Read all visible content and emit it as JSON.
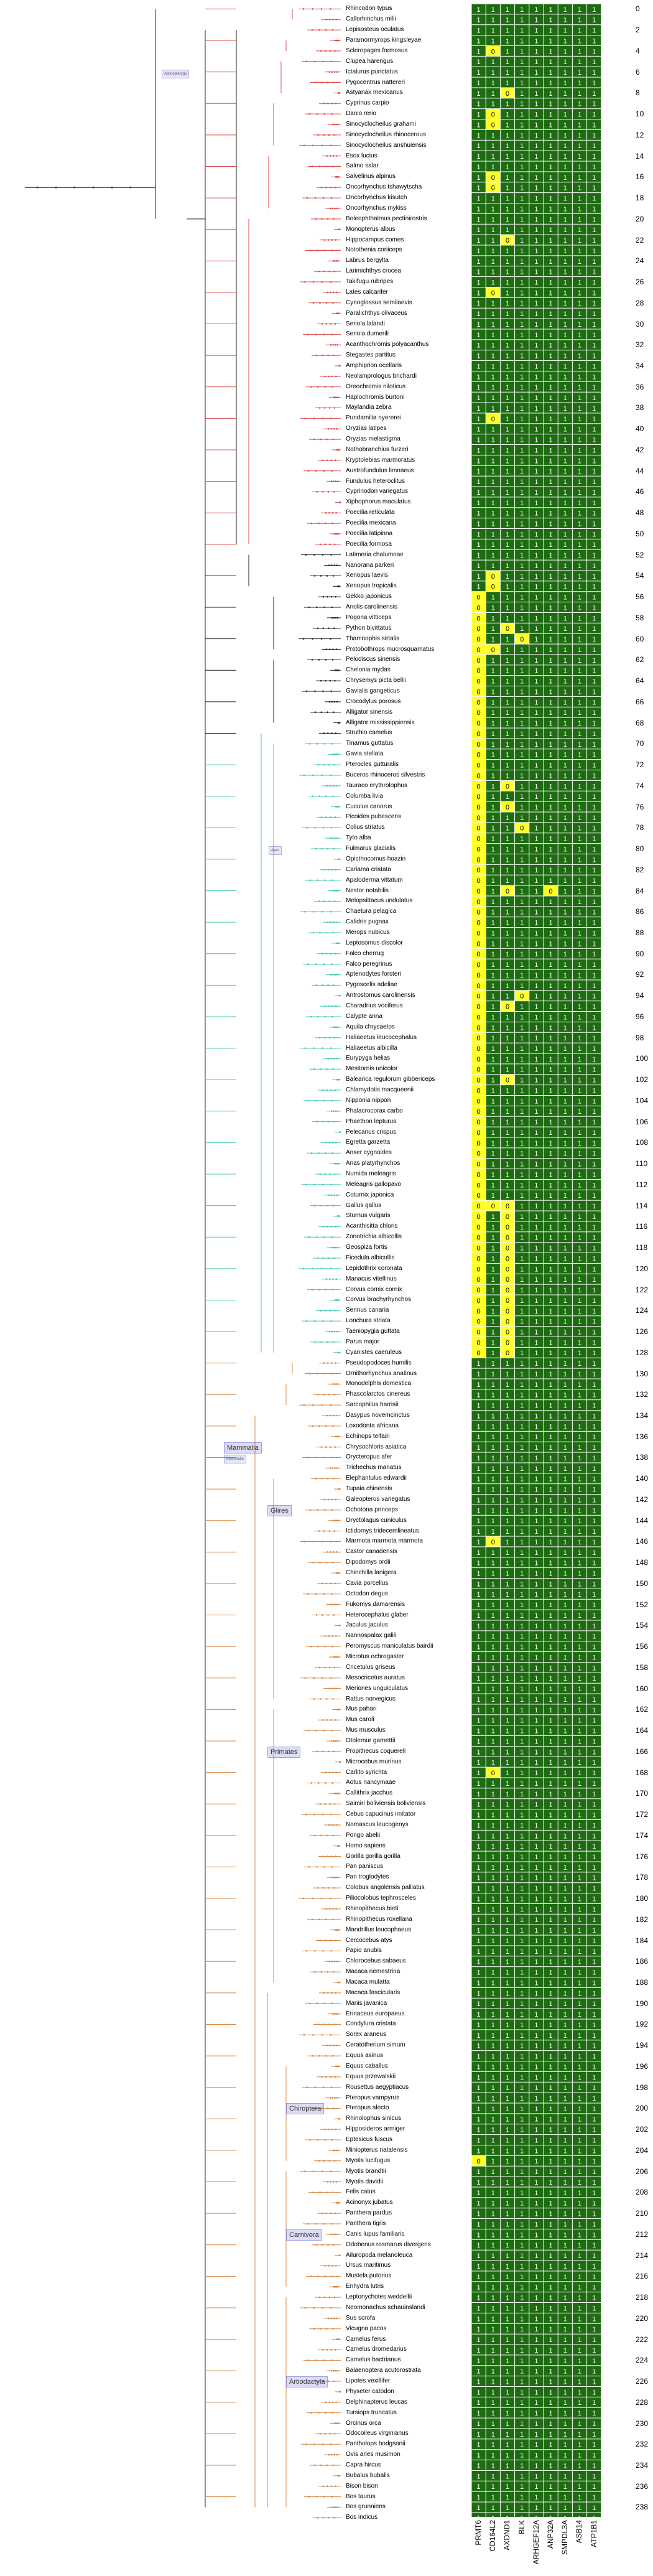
{
  "species": [
    "Rhincodon typus",
    "Callorhinchus milii",
    "Lepisosteus oculatus",
    "Paramormyrops kingsleyae",
    "Scleropages formosus",
    "Clupea harengus",
    "Ictalurus punctatus",
    "Pygocentrus nattereri",
    "Astyanax mexicanus",
    "Cyprinus carpio",
    "Danio rerio",
    "Sinocyclocheilus grahami",
    "Sinocyclocheilus rhinocerous",
    "Sinocyclocheilus anshuiensis",
    "Esox lucius",
    "Salmo salar",
    "Salvelinus alpinus",
    "Oncorhynchus tshawytscha",
    "Oncorhynchus kisutch",
    "Oncorhynchus mykiss",
    "Boleophthalmus pectinirostris",
    "Monopterus albus",
    "Hippocampus comes",
    "Notothenia coriiceps",
    "Labrus bergylta",
    "Larimichthys crocea",
    "Takifugu rubripes",
    "Lates calcarifer",
    "Cynoglossus semilaevis",
    "Paralichthys olivaceus",
    "Seriola lalandi",
    "Seriola dumerili",
    "Acanthochromis polyacanthus",
    "Stegastes partitus",
    "Amphiprion ocellaris",
    "Neolamprologus brichardi",
    "Oreochromis niloticus",
    "Haplochromis burtoni",
    "Maylandia zebra",
    "Pundamilia nyererei",
    "Oryzias latipes",
    "Oryzias melastigma",
    "Nothobranchius furzeri",
    "Kryptolebias marmoratus",
    "Austrofundulus limnaeus",
    "Fundulus heteroclitus",
    "Cyprinodon variegatus",
    "Xiphophorus maculatus",
    "Poecilia reticulata",
    "Poecilia mexicana",
    "Poecilia latipinna",
    "Poecilia formosa",
    "Latimeria chalumnae",
    "Nanorana parkeri",
    "Xenopus laevis",
    "Xenopus tropicalis",
    "Gekko japonicus",
    "Anolis carolinensis",
    "Pogona vitticeps",
    "Python bivittatus",
    "Thamnophis sirtalis",
    "Protobothrops mucrosquamatus",
    "Pelodiscus sinensis",
    "Chelonia mydas",
    "Chrysemys picta bellii",
    "Gavialis gangeticus",
    "Crocodylus porosus",
    "Alligator sinensis",
    "Alligator mississippiensis",
    "Struthio camelus",
    "Tinamus guttatus",
    "Gavia stellata",
    "Pterocles gutturalis",
    "Buceros rhinoceros silvestris",
    "Tauraco erythrolophus",
    "Columba livia",
    "Cuculus canorus",
    "Picoides pubescens",
    "Colius striatus",
    "Tyto alba",
    "Fulmarus glacialis",
    "Opisthocomus hoazin",
    "Cariama cristata",
    "Apaloderma vittatum",
    "Nestor notabilis",
    "Melopsittacus undulatus",
    "Chaetura pelagica",
    "Calidris pugnax",
    "Merops nubicus",
    "Leptosomus discolor",
    "Falco cherrug",
    "Falco peregrinus",
    "Aptenodytes forsteri",
    "Pygoscelis adeliae",
    "Antrostomus carolinensis",
    "Charadrius vociferus",
    "Calypte anna",
    "Aquila chrysaetos",
    "Haliaeetus leucocephalus",
    "Haliaeetus albicilla",
    "Eurypyga helias",
    "Mesitornis unicolor",
    "Balearica regulorum gibbericeps",
    "Chlamydotis macqueenii",
    "Nipponia nippon",
    "Phalacrocorax carbo",
    "Phaethon lepturus",
    "Pelecanus crispus",
    "Egretta garzetta",
    "Anser cygnoides",
    "Anas platyrhynchos",
    "Numida meleagris",
    "Meleagris gallopavo",
    "Coturnix japonica",
    "Gallus gallus",
    "Sturnus vulgaris",
    "Acanthisitta chloris",
    "Zonotrichia albicollis",
    "Geospiza fortis",
    "Ficedula albicollis",
    "Lepidothrix coronata",
    "Manacus vitellinus",
    "Corvus cornix cornix",
    "Corvus brachyrhynchos",
    "Serinus canaria",
    "Lonchura striata",
    "Taeniopygia guttata",
    "Parus major",
    "Cyanistes caeruleus",
    "Pseudopodoces humilis",
    "Ornithorhynchus anatinus",
    "Monodelphis domestica",
    "Phascolarctos cinereus",
    "Sarcophilus harrisii",
    "Dasypus novemcinctus",
    "Loxodonta africana",
    "Echinops telfairi",
    "Chrysochloris asiatica",
    "Orycteropus afer",
    "Trichechus manatus",
    "Elephantulus edwardii",
    "Tupaia chinensis",
    "Galeopterus variegatus",
    "Ochotona princeps",
    "Oryctolagus cuniculus",
    "Ictidomys tridecemlineatus",
    "Marmota marmota marmota",
    "Castor canadensis",
    "Dipodomys ordii",
    "Chinchilla lanigera",
    "Cavia porcellus",
    "Octodon degus",
    "Fukomys damarensis",
    "Heterocephalus glaber",
    "Jaculus jaculus",
    "Nannospalax galili",
    "Peromyscus maniculatus bairdii",
    "Microtus ochrogaster",
    "Cricetulus griseus",
    "Mesocricetus auratus",
    "Meriones unguiculatus",
    "Rattus norvegicus",
    "Mus pahari",
    "Mus caroli",
    "Mus musculus",
    "Otolemur garnettii",
    "Propithecus coquereli",
    "Microcebus murinus",
    "Carlito syrichta",
    "Aotus nancymaae",
    "Callithrix jacchus",
    "Saimiri boliviensis boliviensis",
    "Cebus capucinus imitator",
    "Nomascus leucogenys",
    "Pongo abelii",
    "Homo sapiens",
    "Gorilla gorilla gorilla",
    "Pan paniscus",
    "Pan troglodytes",
    "Colobus angolensis palliatus",
    "Piliocolobus tephrosceles",
    "Rhinopithecus bieti",
    "Rhinopithecus roxellana",
    "Mandrillus leucophaeus",
    "Cercocebus atys",
    "Papio anubis",
    "Chlorocebus sabaeus",
    "Macaca nemestrina",
    "Macaca mulatta",
    "Macaca fascicularis",
    "Manis javanica",
    "Erinaceus europaeus",
    "Condylura cristata",
    "Sorex araneus",
    "Ceratotherium simum",
    "Equus asinus",
    "Equus caballus",
    "Equus przewalskii",
    "Rousettus aegyptiacus",
    "Pteropus vampyrus",
    "Pteropus alecto",
    "Rhinolophus sinicus",
    "Hipposideros armiger",
    "Eptesicus fuscus",
    "Miniopterus natalensis",
    "Myotis lucifugus",
    "Myotis brandtii",
    "Myotis davidii",
    "Felis catus",
    "Acinonyx jubatus",
    "Panthera pardus",
    "Panthera tigris",
    "Canis lupus familiaris",
    "Odobenus rosmarus divergens",
    "Ailuropoda melanoleuca",
    "Ursus maritimus",
    "Mustela putorius",
    "Enhydra lutris",
    "Leptonychotes weddellii",
    "Neomonachus schauinslandi",
    "Sus scrofa",
    "Vicugna pacos",
    "Camelus ferus",
    "Camelus dromedarius",
    "Camelus bactrianus",
    "Balaenoptera acutorostrata",
    "Lipotes vexillifer",
    "Physeter catodon",
    "Delphinapterus leucas",
    "Tursiops truncatus",
    "Orcinus orca",
    "Odocoileus virginianus",
    "Pantholops hodgsonii",
    "Ovis aries musimon",
    "Capra hircus",
    "Bubalus bubalis",
    "Bison bison",
    "Bos taurus",
    "Bos grunniens",
    "Bos indicus"
  ],
  "genes": [
    "PRMT6",
    "CD164L2",
    "AXDND1",
    "BLK",
    "ARHGEF12A",
    "ANP32A",
    "SMPDL3A",
    "ASB14",
    "ATP1B1"
  ],
  "row_indices_label_every": 2,
  "highlight_labels": [
    "0",
    "1"
  ],
  "cells_zero": [
    [
      4,
      1
    ],
    [
      8,
      2
    ],
    [
      10,
      1
    ],
    [
      11,
      1
    ],
    [
      16,
      1
    ],
    [
      17,
      1
    ],
    [
      22,
      2
    ],
    [
      27,
      1
    ],
    [
      39,
      1
    ],
    [
      54,
      1
    ],
    [
      55,
      1
    ],
    [
      56,
      0
    ],
    [
      57,
      0
    ],
    [
      58,
      0
    ],
    [
      59,
      0
    ],
    [
      59,
      2
    ],
    [
      60,
      0
    ],
    [
      60,
      3
    ],
    [
      61,
      0
    ],
    [
      61,
      1
    ],
    [
      62,
      0
    ],
    [
      63,
      0
    ],
    [
      64,
      0
    ],
    [
      65,
      0
    ],
    [
      66,
      0
    ],
    [
      67,
      0
    ],
    [
      68,
      0
    ],
    [
      69,
      0
    ],
    [
      70,
      0
    ],
    [
      71,
      0
    ],
    [
      72,
      0
    ],
    [
      73,
      0
    ],
    [
      74,
      0
    ],
    [
      74,
      2
    ],
    [
      75,
      0
    ],
    [
      76,
      0
    ],
    [
      76,
      2
    ],
    [
      77,
      0
    ],
    [
      78,
      0
    ],
    [
      78,
      3
    ],
    [
      79,
      0
    ],
    [
      80,
      0
    ],
    [
      81,
      0
    ],
    [
      82,
      0
    ],
    [
      83,
      0
    ],
    [
      84,
      0
    ],
    [
      84,
      2
    ],
    [
      84,
      5
    ],
    [
      85,
      0
    ],
    [
      86,
      0
    ],
    [
      87,
      0
    ],
    [
      88,
      0
    ],
    [
      89,
      0
    ],
    [
      90,
      0
    ],
    [
      91,
      0
    ],
    [
      92,
      0
    ],
    [
      93,
      0
    ],
    [
      94,
      0
    ],
    [
      94,
      3
    ],
    [
      95,
      0
    ],
    [
      95,
      2
    ],
    [
      96,
      0
    ],
    [
      97,
      0
    ],
    [
      98,
      0
    ],
    [
      99,
      0
    ],
    [
      100,
      0
    ],
    [
      101,
      0
    ],
    [
      102,
      0
    ],
    [
      102,
      2
    ],
    [
      103,
      0
    ],
    [
      104,
      0
    ],
    [
      105,
      0
    ],
    [
      106,
      0
    ],
    [
      107,
      0
    ],
    [
      108,
      0
    ],
    [
      109,
      0
    ],
    [
      110,
      0
    ],
    [
      111,
      0
    ],
    [
      112,
      0
    ],
    [
      113,
      0
    ],
    [
      114,
      0
    ],
    [
      114,
      1
    ],
    [
      114,
      2
    ],
    [
      115,
      0
    ],
    [
      115,
      2
    ],
    [
      116,
      0
    ],
    [
      116,
      2
    ],
    [
      117,
      0
    ],
    [
      117,
      2
    ],
    [
      118,
      0
    ],
    [
      118,
      2
    ],
    [
      119,
      0
    ],
    [
      119,
      2
    ],
    [
      120,
      0
    ],
    [
      120,
      2
    ],
    [
      121,
      0
    ],
    [
      121,
      2
    ],
    [
      122,
      0
    ],
    [
      122,
      2
    ],
    [
      123,
      0
    ],
    [
      123,
      2
    ],
    [
      124,
      0
    ],
    [
      124,
      2
    ],
    [
      125,
      0
    ],
    [
      125,
      2
    ],
    [
      126,
      0
    ],
    [
      126,
      2
    ],
    [
      127,
      0
    ],
    [
      127,
      2
    ],
    [
      128,
      0
    ],
    [
      128,
      2
    ],
    [
      146,
      1
    ],
    [
      168,
      1
    ],
    [
      205,
      0
    ]
  ],
  "cells_one_dark": [
    [
      94,
      2
    ],
    [
      61,
      2
    ]
  ],
  "clade_labels": [
    "Glires",
    "Primates",
    "Chiroptera",
    "Carnivora",
    "Artiodactyla",
    "Mammalia"
  ],
  "inset_labels": [
    "Actinopterygii",
    "Aves",
    "Mammalia"
  ],
  "colors": {
    "present": "#1e6b12",
    "absent": "#ffff2a",
    "grid_line": "#ffffff",
    "fish_branch": "#e04a4a",
    "bird_branch": "#3fc7b2",
    "mammal_branch": "#d8843e",
    "stem_branch": "#222222"
  }
}
